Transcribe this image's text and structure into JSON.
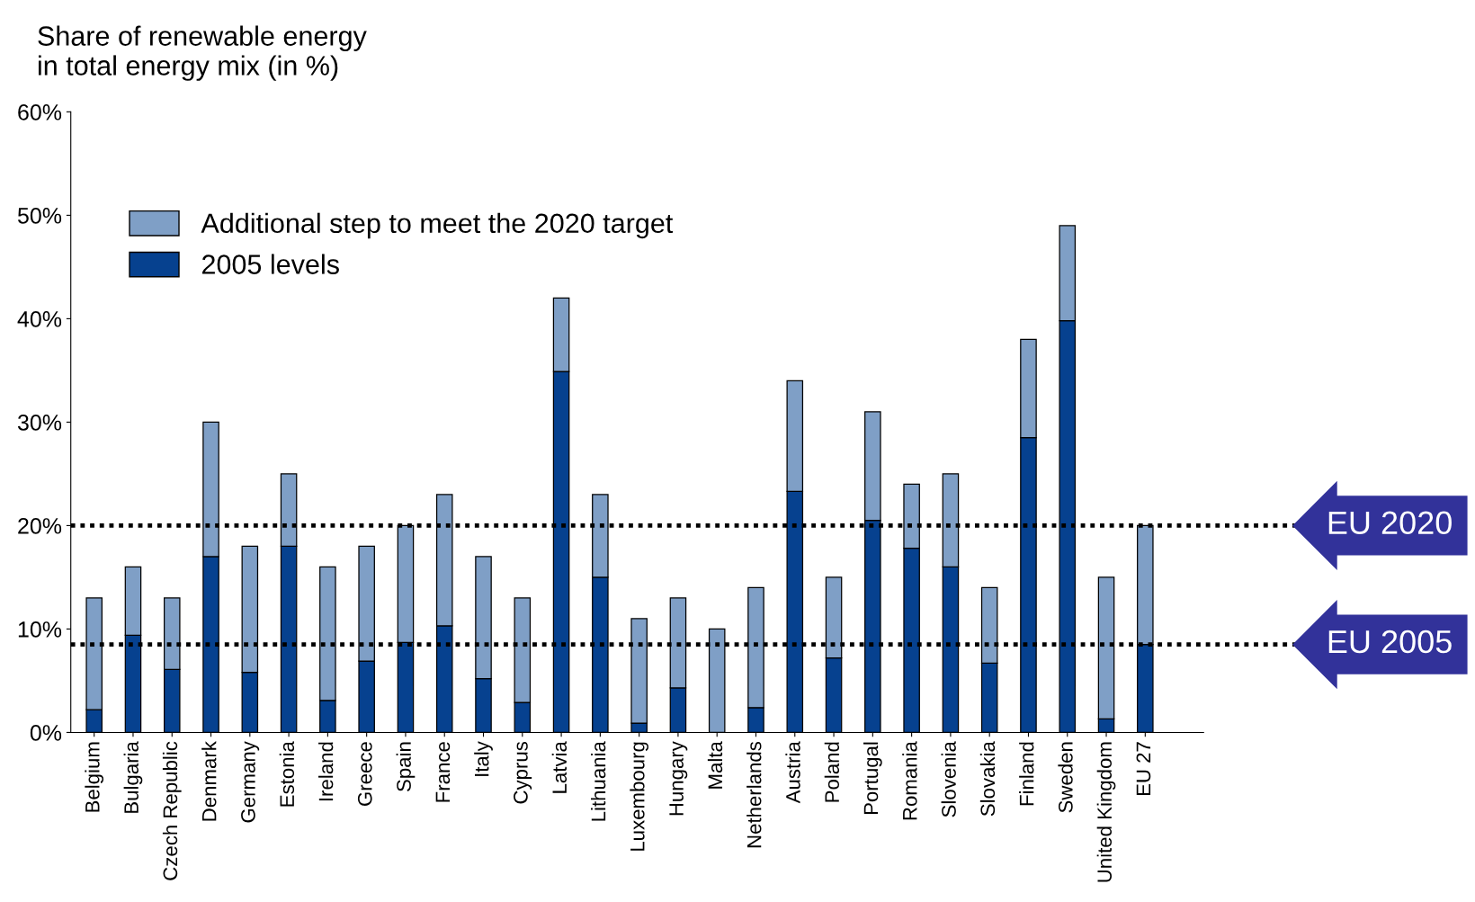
{
  "chart_data": {
    "type": "bar",
    "stacked": true,
    "ylabel": "Share of renewable energy\nin total energy mix (in %)",
    "categories": [
      "Belgium",
      "Bulgaria",
      "Czech Republic",
      "Denmark",
      "Germany",
      "Estonia",
      "Ireland",
      "Greece",
      "Spain",
      "France",
      "Italy",
      "Cyprus",
      "Latvia",
      "Lithuania",
      "Luxembourg",
      "Hungary",
      "Malta",
      "Netherlands",
      "Austria",
      "Poland",
      "Portugal",
      "Romania",
      "Slovenia",
      "Slovakia",
      "Finland",
      "Sweden",
      "United Kingdom",
      "EU 27"
    ],
    "series": [
      {
        "name": "2005 levels",
        "color": "#06418f",
        "values": [
          2.2,
          9.4,
          6.1,
          17,
          5.8,
          18,
          3.1,
          6.9,
          8.7,
          10.3,
          5.2,
          2.9,
          34.9,
          15,
          0.9,
          4.3,
          0,
          2.4,
          23.3,
          7.2,
          20.5,
          17.8,
          16,
          6.7,
          28.5,
          39.8,
          1.3,
          8.5
        ]
      },
      {
        "name": "Additional step to meet the 2020 target",
        "color": "#7f9fc6",
        "values": [
          10.8,
          6.6,
          6.9,
          13,
          12.2,
          7,
          12.9,
          11.1,
          11.3,
          12.7,
          11.8,
          10.1,
          7.1,
          8,
          10.1,
          8.7,
          10,
          11.6,
          10.7,
          7.8,
          10.5,
          6.2,
          9,
          7.3,
          9.5,
          9.2,
          13.7,
          11.5
        ]
      }
    ],
    "ylim": [
      0,
      60
    ],
    "yticks": [
      {
        "value": 0,
        "label": "0%"
      },
      {
        "value": 10,
        "label": "10%"
      },
      {
        "value": 20,
        "label": "20%"
      },
      {
        "value": 30,
        "label": "30%"
      },
      {
        "value": 40,
        "label": "40%"
      },
      {
        "value": 50,
        "label": "50%"
      },
      {
        "value": 60,
        "label": "60%"
      }
    ],
    "ref_lines": [
      {
        "axis": "y",
        "value": 20,
        "label": "EU 2020",
        "color": "#000000",
        "line_style": "dotted"
      },
      {
        "axis": "y",
        "value": 8.5,
        "label": "EU 2005",
        "color": "#000000",
        "line_style": "dotted"
      }
    ],
    "legend": "top left",
    "grid": false
  }
}
